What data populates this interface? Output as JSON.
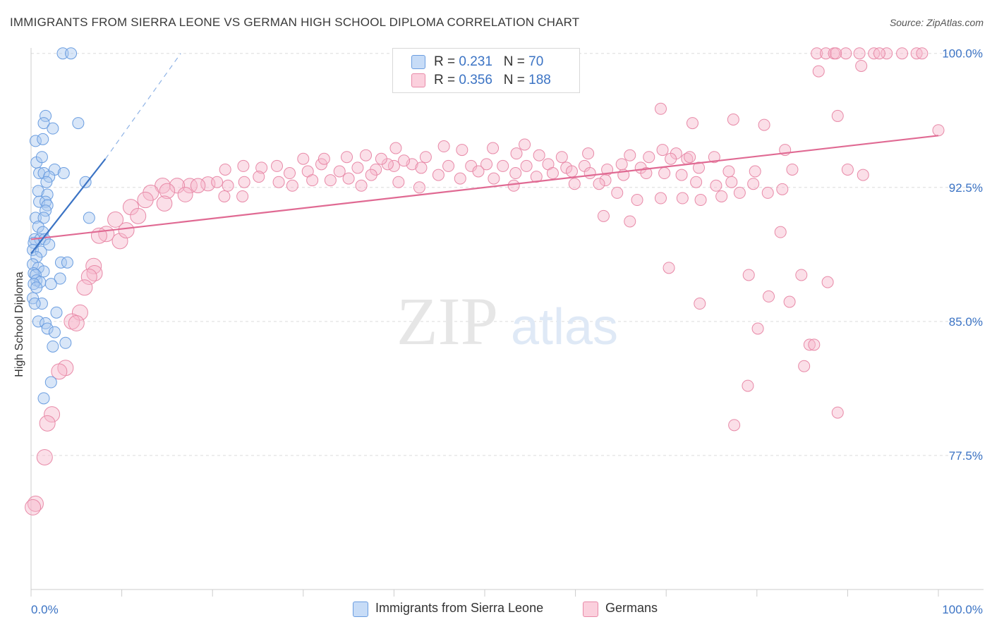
{
  "title": "IMMIGRANTS FROM SIERRA LEONE VS GERMAN HIGH SCHOOL DIPLOMA CORRELATION CHART",
  "source": "Source: ZipAtlas.com",
  "watermark": {
    "zip": "ZIP",
    "atlas": "atlas"
  },
  "legend": {
    "r_label": "R =",
    "n_label": "N =",
    "series": [
      {
        "name": "Immigrants from Sierra Leone",
        "r": "0.231",
        "n": "70",
        "fill": "#a8c8f0",
        "stroke": "#6a9de0"
      },
      {
        "name": "Germans",
        "r": "0.356",
        "n": "188",
        "fill": "#f7b8cc",
        "stroke": "#e88aa8"
      }
    ]
  },
  "chart_data": {
    "type": "scatter",
    "title": "IMMIGRANTS FROM SIERRA LEONE VS GERMAN HIGH SCHOOL DIPLOMA CORRELATION CHART",
    "xlabel": "",
    "ylabel": "High School Diploma",
    "xlim": [
      0,
      100
    ],
    "ylim": [
      70.0,
      100.7
    ],
    "x_tick_labels": [
      "0.0%",
      "100.0%"
    ],
    "y_ticks": [
      77.5,
      85.0,
      92.5,
      100.0
    ],
    "y_tick_labels": [
      "77.5%",
      "85.0%",
      "92.5%",
      "100.0%"
    ],
    "grid": "horizontal dashed",
    "colors": {
      "blue": "#3b73c4",
      "pink": "#e06a93",
      "blue_fill": "#a8c8f0",
      "pink_fill": "#f7b8cc",
      "tick_label": "#3b73c4"
    },
    "series": [
      {
        "name": "Immigrants from Sierra Leone",
        "color": "#6a9de0",
        "trend": {
          "x": [
            0,
            8.2
          ],
          "y": [
            88.8,
            94.1
          ],
          "dashed_to": [
            16.5,
            100.0
          ]
        },
        "points": [
          [
            3.5,
            100.0
          ],
          [
            4.4,
            100.0
          ],
          [
            1.6,
            96.5
          ],
          [
            1.4,
            96.1
          ],
          [
            2.4,
            95.8
          ],
          [
            5.2,
            96.1
          ],
          [
            0.5,
            95.1
          ],
          [
            1.3,
            95.2
          ],
          [
            0.6,
            93.9
          ],
          [
            1.2,
            94.2
          ],
          [
            2.6,
            93.5
          ],
          [
            0.9,
            93.3
          ],
          [
            1.4,
            93.3
          ],
          [
            3.6,
            93.3
          ],
          [
            2.0,
            93.1
          ],
          [
            1.7,
            92.8
          ],
          [
            6.0,
            92.8
          ],
          [
            0.8,
            92.3
          ],
          [
            1.8,
            92.1
          ],
          [
            0.9,
            91.7
          ],
          [
            1.6,
            91.7
          ],
          [
            1.8,
            91.5
          ],
          [
            1.6,
            91.2
          ],
          [
            6.4,
            90.8
          ],
          [
            0.5,
            90.8
          ],
          [
            1.4,
            90.8
          ],
          [
            0.8,
            90.3
          ],
          [
            1.3,
            90.0
          ],
          [
            0.4,
            89.6
          ],
          [
            1.0,
            89.6
          ],
          [
            1.5,
            89.6
          ],
          [
            0.3,
            89.4
          ],
          [
            2.0,
            89.3
          ],
          [
            0.2,
            89.0
          ],
          [
            1.1,
            88.9
          ],
          [
            0.6,
            88.6
          ],
          [
            3.3,
            88.3
          ],
          [
            4.0,
            88.3
          ],
          [
            0.2,
            88.2
          ],
          [
            0.8,
            88.0
          ],
          [
            1.4,
            87.8
          ],
          [
            0.3,
            87.7
          ],
          [
            0.5,
            87.6
          ],
          [
            3.2,
            87.4
          ],
          [
            0.6,
            87.3
          ],
          [
            1.0,
            87.2
          ],
          [
            0.3,
            87.1
          ],
          [
            2.2,
            87.1
          ],
          [
            0.6,
            86.9
          ],
          [
            0.2,
            86.3
          ],
          [
            1.2,
            86.0
          ],
          [
            0.4,
            86.0
          ],
          [
            2.8,
            85.5
          ],
          [
            0.8,
            85.0
          ],
          [
            1.6,
            84.9
          ],
          [
            1.8,
            84.6
          ],
          [
            2.6,
            84.4
          ],
          [
            3.8,
            83.8
          ],
          [
            2.4,
            83.6
          ],
          [
            2.2,
            81.6
          ],
          [
            1.4,
            80.7
          ]
        ]
      },
      {
        "name": "Germans",
        "color": "#e88aa8",
        "trend": {
          "x": [
            0,
            100
          ],
          "y": [
            89.6,
            95.4
          ]
        },
        "points": [
          [
            86.6,
            100.0
          ],
          [
            87.6,
            100.0
          ],
          [
            88.5,
            100.0
          ],
          [
            89.8,
            100.0
          ],
          [
            91.3,
            100.0
          ],
          [
            92.9,
            100.0
          ],
          [
            94.3,
            100.0
          ],
          [
            96.0,
            100.0
          ],
          [
            97.6,
            100.0
          ],
          [
            88.7,
            100.0
          ],
          [
            93.5,
            100.0
          ],
          [
            98.2,
            100.0
          ],
          [
            86.8,
            99.0
          ],
          [
            91.5,
            99.3
          ],
          [
            69.4,
            96.9
          ],
          [
            72.9,
            96.1
          ],
          [
            77.4,
            96.3
          ],
          [
            80.8,
            96.0
          ],
          [
            88.9,
            96.5
          ],
          [
            100.0,
            95.7
          ],
          [
            54.4,
            94.9
          ],
          [
            69.6,
            94.6
          ],
          [
            83.1,
            94.6
          ],
          [
            71.1,
            94.4
          ],
          [
            72.3,
            94.1
          ],
          [
            40.2,
            94.7
          ],
          [
            45.5,
            94.8
          ],
          [
            47.5,
            94.6
          ],
          [
            50.9,
            94.7
          ],
          [
            53.5,
            94.4
          ],
          [
            56.0,
            94.3
          ],
          [
            58.5,
            94.2
          ],
          [
            61.4,
            94.4
          ],
          [
            66.0,
            94.3
          ],
          [
            68.1,
            94.2
          ],
          [
            70.5,
            94.1
          ],
          [
            72.6,
            94.2
          ],
          [
            75.3,
            94.2
          ],
          [
            40.0,
            93.7
          ],
          [
            42.0,
            93.8
          ],
          [
            43.5,
            94.2
          ],
          [
            46.0,
            93.7
          ],
          [
            48.5,
            93.7
          ],
          [
            50.2,
            93.8
          ],
          [
            52.0,
            93.7
          ],
          [
            54.6,
            93.7
          ],
          [
            57.0,
            93.8
          ],
          [
            59.0,
            93.6
          ],
          [
            61.0,
            93.7
          ],
          [
            63.5,
            93.5
          ],
          [
            65.1,
            93.8
          ],
          [
            67.2,
            93.6
          ],
          [
            73.6,
            93.6
          ],
          [
            76.9,
            93.4
          ],
          [
            79.8,
            93.4
          ],
          [
            83.9,
            93.5
          ],
          [
            90.0,
            93.5
          ],
          [
            91.7,
            93.2
          ],
          [
            21.4,
            93.5
          ],
          [
            23.4,
            93.7
          ],
          [
            25.4,
            93.6
          ],
          [
            27.1,
            93.7
          ],
          [
            28.5,
            93.3
          ],
          [
            30.5,
            93.4
          ],
          [
            32.0,
            93.8
          ],
          [
            34.0,
            93.4
          ],
          [
            36.0,
            93.6
          ],
          [
            38.0,
            93.5
          ],
          [
            39.3,
            93.8
          ],
          [
            30.0,
            94.1
          ],
          [
            32.3,
            94.1
          ],
          [
            34.8,
            94.2
          ],
          [
            36.9,
            94.3
          ],
          [
            38.6,
            94.1
          ],
          [
            41.1,
            94.0
          ],
          [
            43.0,
            93.6
          ],
          [
            44.9,
            93.2
          ],
          [
            47.3,
            93.0
          ],
          [
            49.3,
            93.4
          ],
          [
            51.0,
            93.0
          ],
          [
            53.4,
            93.3
          ],
          [
            55.7,
            93.1
          ],
          [
            57.5,
            93.3
          ],
          [
            59.6,
            93.4
          ],
          [
            61.6,
            93.3
          ],
          [
            63.3,
            92.9
          ],
          [
            65.3,
            93.2
          ],
          [
            67.8,
            93.3
          ],
          [
            69.8,
            93.3
          ],
          [
            71.7,
            93.2
          ],
          [
            73.3,
            92.8
          ],
          [
            75.5,
            92.6
          ],
          [
            77.2,
            92.8
          ],
          [
            79.6,
            92.7
          ],
          [
            81.2,
            92.2
          ],
          [
            82.8,
            92.4
          ],
          [
            17.5,
            92.6
          ],
          [
            19.5,
            92.7
          ],
          [
            21.7,
            92.6
          ],
          [
            23.5,
            92.8
          ],
          [
            25.1,
            93.1
          ],
          [
            27.3,
            92.8
          ],
          [
            28.8,
            92.6
          ],
          [
            31.0,
            92.9
          ],
          [
            33.0,
            92.9
          ],
          [
            35.0,
            93.0
          ],
          [
            37.5,
            93.2
          ],
          [
            40.5,
            92.8
          ],
          [
            42.8,
            92.5
          ],
          [
            14.5,
            92.6
          ],
          [
            16.1,
            92.6
          ],
          [
            18.4,
            92.6
          ],
          [
            20.5,
            92.8
          ],
          [
            13.2,
            92.2
          ],
          [
            15.0,
            92.3
          ],
          [
            17.0,
            92.1
          ],
          [
            21.3,
            92.0
          ],
          [
            23.3,
            92.0
          ],
          [
            36.4,
            92.6
          ],
          [
            53.2,
            92.6
          ],
          [
            59.9,
            92.7
          ],
          [
            62.6,
            92.7
          ],
          [
            64.6,
            92.2
          ],
          [
            66.8,
            91.8
          ],
          [
            69.4,
            91.9
          ],
          [
            71.8,
            91.9
          ],
          [
            73.8,
            91.8
          ],
          [
            76.1,
            92.0
          ],
          [
            78.1,
            92.2
          ],
          [
            12.6,
            91.8
          ],
          [
            14.7,
            91.6
          ],
          [
            11.0,
            91.4
          ],
          [
            11.8,
            90.9
          ],
          [
            66.0,
            90.6
          ],
          [
            63.1,
            90.9
          ],
          [
            9.3,
            90.7
          ],
          [
            8.3,
            89.9
          ],
          [
            9.8,
            89.5
          ],
          [
            10.5,
            90.1
          ],
          [
            7.5,
            89.8
          ],
          [
            82.6,
            90.0
          ],
          [
            70.3,
            88.0
          ],
          [
            79.1,
            87.6
          ],
          [
            84.9,
            87.6
          ],
          [
            87.8,
            87.2
          ],
          [
            73.7,
            86.0
          ],
          [
            81.3,
            86.4
          ],
          [
            83.6,
            86.1
          ],
          [
            6.9,
            88.1
          ],
          [
            7.0,
            87.7
          ],
          [
            6.4,
            87.5
          ],
          [
            5.9,
            86.9
          ],
          [
            5.4,
            85.5
          ],
          [
            4.5,
            85.0
          ],
          [
            5.0,
            84.9
          ],
          [
            80.1,
            84.6
          ],
          [
            85.8,
            83.7
          ],
          [
            86.3,
            83.7
          ],
          [
            85.2,
            82.5
          ],
          [
            3.8,
            82.4
          ],
          [
            3.1,
            82.2
          ],
          [
            79.0,
            81.4
          ],
          [
            88.9,
            79.9
          ],
          [
            2.3,
            79.8
          ],
          [
            1.8,
            79.3
          ],
          [
            77.5,
            79.2
          ],
          [
            1.5,
            77.4
          ],
          [
            0.5,
            74.8
          ],
          [
            0.2,
            74.6
          ]
        ]
      }
    ]
  }
}
